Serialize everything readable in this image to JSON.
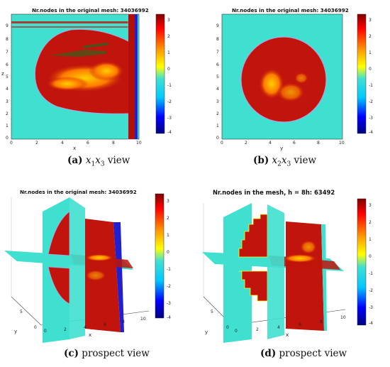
{
  "panels": [
    {
      "id": "a",
      "title": "Nr.nodes in the original mesh: 34036992",
      "caption_letter": "(a)",
      "caption_text": "x1x3 view",
      "xlabel": "x",
      "ylabel": "z",
      "x_ticks": [
        "0",
        "2",
        "4",
        "6",
        "8",
        "10"
      ],
      "y_ticks": [
        "0",
        "1",
        "2",
        "3",
        "4",
        "5",
        "6",
        "7",
        "8",
        "9"
      ],
      "colorbar_ticks": [
        "3",
        "2",
        "1",
        "0",
        "-1",
        "-2",
        "-3",
        "-4"
      ]
    },
    {
      "id": "b",
      "title": "Nr.nodes in the original mesh: 34036992",
      "caption_letter": "(b)",
      "caption_text": "x2x3 view",
      "xlabel": "y",
      "ylabel": "",
      "x_ticks": [
        "0",
        "2",
        "4",
        "6",
        "8",
        "10"
      ],
      "y_ticks": [
        "0",
        "1",
        "2",
        "3",
        "4",
        "5",
        "6",
        "7",
        "8",
        "9"
      ],
      "colorbar_ticks": [
        "3",
        "2",
        "1",
        "0",
        "-1",
        "-2",
        "-3",
        "-4"
      ]
    },
    {
      "id": "c",
      "title": "Nr.nodes in the original mesh: 34036992",
      "caption_letter": "(c)",
      "caption_text": "prospect view",
      "xlabel": "x",
      "ylabel": "y",
      "x_ticks": [
        "0",
        "2",
        "4",
        "6",
        "8",
        "10"
      ],
      "y_ticks": [
        "0",
        "5"
      ],
      "colorbar_ticks": [
        "3",
        "2",
        "1",
        "0",
        "-1",
        "-2",
        "-3",
        "-4"
      ]
    },
    {
      "id": "d",
      "title": "Nr.nodes in the mesh, h = 8h: 63492",
      "caption_letter": "(d)",
      "caption_text": "prospect view",
      "xlabel": "x",
      "ylabel": "y",
      "x_ticks": [
        "0",
        "2",
        "4",
        "6",
        "8",
        "10"
      ],
      "y_ticks": [
        "0",
        "5"
      ],
      "colorbar_ticks": [
        "3",
        "2",
        "1",
        "0",
        "-1",
        "-2",
        "-3",
        "-4"
      ]
    }
  ],
  "captions": {
    "a_math": "x",
    "a_sub1": "1",
    "a_sub2": "3",
    "b_sub1": "2",
    "b_sub2": "3"
  },
  "colors": {
    "background_field": "#40e0d0",
    "object": "#c0140c",
    "hot": "#ffb000",
    "colorbar_top": "#7f0000",
    "colorbar_bottom": "#00007f"
  },
  "colorbar_range": [
    -4,
    3.3
  ]
}
